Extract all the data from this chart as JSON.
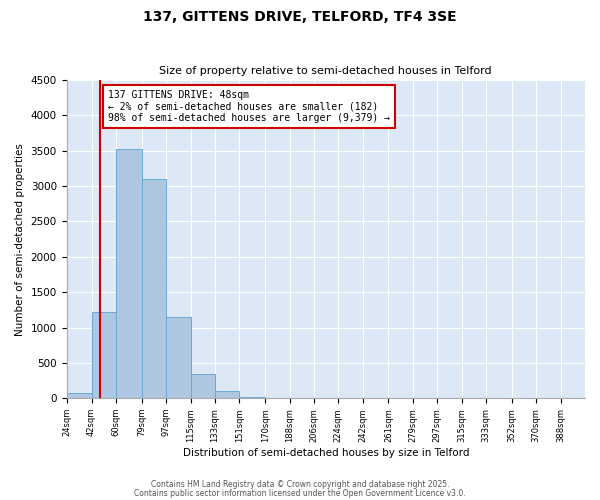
{
  "title": "137, GITTENS DRIVE, TELFORD, TF4 3SE",
  "subtitle": "Size of property relative to semi-detached houses in Telford",
  "bar_labels": [
    "24sqm",
    "42sqm",
    "60sqm",
    "79sqm",
    "97sqm",
    "115sqm",
    "133sqm",
    "151sqm",
    "170sqm",
    "188sqm",
    "206sqm",
    "224sqm",
    "242sqm",
    "261sqm",
    "279sqm",
    "297sqm",
    "315sqm",
    "333sqm",
    "352sqm",
    "370sqm",
    "388sqm"
  ],
  "bar_values": [
    80,
    1220,
    3520,
    3100,
    1150,
    340,
    100,
    15,
    5,
    2,
    1,
    0,
    0,
    0,
    0,
    0,
    0,
    0,
    0,
    0,
    0
  ],
  "bar_color": "#aec6e0",
  "bar_edge_color": "#6aaad4",
  "ylim": [
    0,
    4500
  ],
  "yticks": [
    0,
    500,
    1000,
    1500,
    2000,
    2500,
    3000,
    3500,
    4000,
    4500
  ],
  "ylabel": "Number of semi-detached properties",
  "xlabel": "Distribution of semi-detached houses by size in Telford",
  "property_line_x": 48,
  "property_line_color": "#cc0000",
  "annotation_title": "137 GITTENS DRIVE: 48sqm",
  "annotation_line1": "← 2% of semi-detached houses are smaller (182)",
  "annotation_line2": "98% of semi-detached houses are larger (9,379) →",
  "annotation_box_color": "#ffffff",
  "annotation_box_edge": "#cc0000",
  "bg_color": "#dce8f5",
  "footer1": "Contains HM Land Registry data © Crown copyright and database right 2025.",
  "footer2": "Contains public sector information licensed under the Open Government Licence v3.0.",
  "bin_edges": [
    24,
    42,
    60,
    79,
    97,
    115,
    133,
    151,
    170,
    188,
    206,
    224,
    242,
    261,
    279,
    297,
    315,
    333,
    352,
    370,
    388,
    406
  ]
}
